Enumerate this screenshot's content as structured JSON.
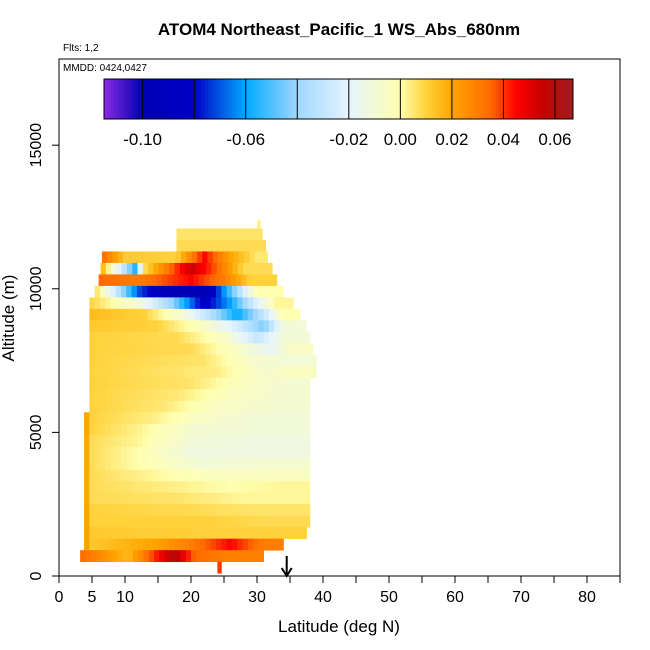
{
  "chart_data": {
    "type": "heatmap",
    "title": "ATOM4 Northeast_Pacific_1 WS_Abs_680nm",
    "flights_note": "Flts: 1,2",
    "dates_note": "MMDD: 0424,0427",
    "xlabel": "Latitude (deg N)",
    "ylabel": "Altitude (m)",
    "xlim": [
      0,
      85
    ],
    "ylim": [
      0,
      18000
    ],
    "x_ticks": [
      0,
      5,
      10,
      20,
      30,
      40,
      50,
      60,
      70,
      80
    ],
    "x_minor_ticks": [
      15,
      25,
      35,
      45,
      55,
      65,
      75,
      85
    ],
    "y_ticks": [
      0,
      5000,
      10000,
      15000
    ],
    "colorbar": {
      "range": [
        -0.115,
        0.067
      ],
      "tick_values": [
        -0.1,
        -0.06,
        -0.02,
        0.0,
        0.02,
        0.04,
        0.06
      ],
      "tick_labels": [
        "-0.10",
        "-0.06",
        "-0.02",
        "0.00",
        "0.02",
        "0.04",
        "0.06"
      ],
      "stops": [
        {
          "v": -0.115,
          "c": "#8a2be2"
        },
        {
          "v": -0.1,
          "c": "#0000b3"
        },
        {
          "v": -0.08,
          "c": "#0000c8"
        },
        {
          "v": -0.06,
          "c": "#00aaff"
        },
        {
          "v": -0.04,
          "c": "#9fd8ff"
        },
        {
          "v": -0.02,
          "c": "#e6f4ff"
        },
        {
          "v": 0.0,
          "c": "#ffffb0"
        },
        {
          "v": 0.01,
          "c": "#ffd23c"
        },
        {
          "v": 0.02,
          "c": "#ffa500"
        },
        {
          "v": 0.035,
          "c": "#ff6a00"
        },
        {
          "v": 0.045,
          "c": "#ff0000"
        },
        {
          "v": 0.055,
          "c": "#c80000"
        },
        {
          "v": 0.067,
          "c": "#a01e1e"
        }
      ]
    },
    "marker": {
      "latitude": 34.5,
      "description": "arrow"
    },
    "rows": [
      {
        "alt": 12200,
        "x0": 30,
        "x1": 30.5,
        "v": 0.003
      },
      {
        "alt": 11900,
        "x0": 17.8,
        "x1": 30.8,
        "v": 0.006
      },
      {
        "alt": 11500,
        "x0": 17.8,
        "x1": 31.3,
        "v": 0.008
      },
      {
        "alt": 11100,
        "x0": 6.5,
        "x1": 31.6,
        "segments": [
          [
            6.5,
            0.035
          ],
          [
            10,
            0.012
          ],
          [
            17.8,
            0.01
          ],
          [
            22,
            0.045
          ],
          [
            26,
            0.02
          ],
          [
            30,
            0.005
          ]
        ]
      },
      {
        "alt": 10700,
        "x0": 6.3,
        "x1": 32.3,
        "segments": [
          [
            6.3,
            0.02
          ],
          [
            11.5,
            -0.055
          ],
          [
            13,
            0.008
          ],
          [
            20,
            0.055
          ],
          [
            24,
            0.035
          ],
          [
            28,
            0.008
          ]
        ]
      },
      {
        "alt": 10300,
        "x0": 6.0,
        "x1": 33.0,
        "segments": [
          [
            6.0,
            0.035
          ],
          [
            12,
            0.03
          ],
          [
            20,
            0.045
          ],
          [
            25,
            0.03
          ],
          [
            29,
            0.01
          ]
        ]
      },
      {
        "alt": 9900,
        "x0": 5.4,
        "x1": 34.0,
        "segments": [
          [
            5.4,
            0.01
          ],
          [
            8,
            -0.02
          ],
          [
            12,
            -0.07
          ],
          [
            16,
            -0.095
          ],
          [
            22,
            -0.1
          ],
          [
            26,
            -0.05
          ],
          [
            30,
            0.0
          ]
        ]
      },
      {
        "alt": 9500,
        "x0": 4.6,
        "x1": 35.5,
        "segments": [
          [
            4.6,
            0.01
          ],
          [
            12,
            -0.01
          ],
          [
            17,
            -0.04
          ],
          [
            22,
            -0.085
          ],
          [
            26,
            -0.06
          ],
          [
            29,
            -0.03
          ],
          [
            33,
            0.002
          ]
        ]
      },
      {
        "alt": 9100,
        "x0": 4.6,
        "x1": 36.5,
        "segments": [
          [
            4.6,
            0.015
          ],
          [
            13,
            0.01
          ],
          [
            19,
            -0.01
          ],
          [
            24,
            -0.04
          ],
          [
            27,
            -0.06
          ],
          [
            31,
            -0.03
          ],
          [
            34,
            0.0
          ]
        ]
      },
      {
        "alt": 8700,
        "x0": 4.6,
        "x1": 37.5,
        "segments": [
          [
            4.6,
            0.012
          ],
          [
            15,
            0.01
          ],
          [
            22,
            -0.005
          ],
          [
            27,
            -0.025
          ],
          [
            31,
            -0.045
          ],
          [
            34,
            -0.01
          ]
        ]
      },
      {
        "alt": 8300,
        "x0": 4.6,
        "x1": 38.0,
        "segments": [
          [
            4.6,
            0.01
          ],
          [
            18,
            0.008
          ],
          [
            25,
            -0.005
          ],
          [
            30,
            -0.03
          ],
          [
            34,
            -0.01
          ]
        ]
      },
      {
        "alt": 7900,
        "x0": 4.6,
        "x1": 38.5,
        "segments": [
          [
            4.6,
            0.01
          ],
          [
            20,
            0.008
          ],
          [
            27,
            -0.005
          ],
          [
            32,
            -0.018
          ],
          [
            35,
            -0.005
          ]
        ]
      },
      {
        "alt": 7500,
        "x0": 4.6,
        "x1": 39.0,
        "segments": [
          [
            4.6,
            0.01
          ],
          [
            22,
            0.006
          ],
          [
            30,
            -0.008
          ],
          [
            35,
            -0.01
          ]
        ]
      },
      {
        "alt": 7100,
        "x0": 4.6,
        "x1": 39.0,
        "segments": [
          [
            4.6,
            0.01
          ],
          [
            24,
            0.004
          ],
          [
            31,
            -0.008
          ],
          [
            35,
            -0.004
          ]
        ]
      },
      {
        "alt": 6700,
        "x0": 4.6,
        "x1": 38.0,
        "segments": [
          [
            4.6,
            0.01
          ],
          [
            20,
            0.006
          ],
          [
            28,
            -0.004
          ],
          [
            34,
            -0.008
          ]
        ]
      },
      {
        "alt": 6300,
        "x0": 4.6,
        "x1": 38.0,
        "segments": [
          [
            4.6,
            0.01
          ],
          [
            18,
            0.005
          ],
          [
            26,
            -0.004
          ],
          [
            33,
            -0.008
          ]
        ]
      },
      {
        "alt": 5900,
        "x0": 4.6,
        "x1": 38.0,
        "segments": [
          [
            4.6,
            0.01
          ],
          [
            16,
            0.005
          ],
          [
            24,
            -0.005
          ],
          [
            32,
            -0.008
          ]
        ]
      },
      {
        "alt": 5500,
        "x0": 3.8,
        "x1": 38.0,
        "segments": [
          [
            3.8,
            0.03
          ],
          [
            4.6,
            0.01
          ],
          [
            14,
            0.004
          ],
          [
            22,
            -0.006
          ],
          [
            30,
            -0.01
          ]
        ]
      },
      {
        "alt": 5100,
        "x0": 3.8,
        "x1": 38.0,
        "segments": [
          [
            3.8,
            0.03
          ],
          [
            4.6,
            0.01
          ],
          [
            12,
            0.003
          ],
          [
            20,
            -0.008
          ],
          [
            30,
            -0.01
          ]
        ]
      },
      {
        "alt": 4700,
        "x0": 3.8,
        "x1": 38.0,
        "segments": [
          [
            3.8,
            0.03
          ],
          [
            4.6,
            0.008
          ],
          [
            12,
            0.002
          ],
          [
            20,
            -0.01
          ],
          [
            30,
            -0.012
          ]
        ]
      },
      {
        "alt": 4300,
        "x0": 3.8,
        "x1": 38.0,
        "segments": [
          [
            3.8,
            0.03
          ],
          [
            4.6,
            0.008
          ],
          [
            12,
            0.0
          ],
          [
            20,
            -0.012
          ],
          [
            30,
            -0.012
          ]
        ]
      },
      {
        "alt": 3900,
        "x0": 3.8,
        "x1": 38.0,
        "segments": [
          [
            3.8,
            0.03
          ],
          [
            4.6,
            0.008
          ],
          [
            12,
            0.0
          ],
          [
            22,
            -0.01
          ],
          [
            32,
            -0.008
          ]
        ]
      },
      {
        "alt": 3500,
        "x0": 3.8,
        "x1": 38.0,
        "segments": [
          [
            3.8,
            0.03
          ],
          [
            4.6,
            0.008
          ],
          [
            14,
            0.002
          ],
          [
            24,
            -0.004
          ],
          [
            34,
            -0.004
          ]
        ]
      },
      {
        "alt": 3100,
        "x0": 3.8,
        "x1": 38.0,
        "segments": [
          [
            3.8,
            0.03
          ],
          [
            4.6,
            0.008
          ],
          [
            16,
            0.004
          ],
          [
            26,
            0.0
          ],
          [
            34,
            0.002
          ]
        ]
      },
      {
        "alt": 2700,
        "x0": 3.8,
        "x1": 38.0,
        "segments": [
          [
            3.8,
            0.03
          ],
          [
            4.6,
            0.008
          ],
          [
            18,
            0.006
          ],
          [
            28,
            0.002
          ]
        ]
      },
      {
        "alt": 2300,
        "x0": 3.8,
        "x1": 38.0,
        "segments": [
          [
            3.8,
            0.03
          ],
          [
            4.6,
            0.01
          ],
          [
            20,
            0.008
          ],
          [
            30,
            0.006
          ]
        ]
      },
      {
        "alt": 1900,
        "x0": 3.8,
        "x1": 38.0,
        "segments": [
          [
            3.8,
            0.03
          ],
          [
            4.6,
            0.01
          ],
          [
            22,
            0.01
          ],
          [
            32,
            0.008
          ]
        ]
      },
      {
        "alt": 1500,
        "x0": 3.8,
        "x1": 37.5,
        "segments": [
          [
            3.8,
            0.03
          ],
          [
            4.6,
            0.012
          ],
          [
            24,
            0.01
          ]
        ]
      },
      {
        "alt": 1100,
        "x0": 3.8,
        "x1": 34.0,
        "segments": [
          [
            3.8,
            0.03
          ],
          [
            4.6,
            0.012
          ],
          [
            14,
            0.02
          ],
          [
            20,
            0.03
          ],
          [
            26,
            0.045
          ],
          [
            31,
            0.03
          ]
        ]
      },
      {
        "alt": 700,
        "x0": 3.2,
        "x1": 31.0,
        "segments": [
          [
            3.2,
            0.035
          ],
          [
            10.5,
            0.015
          ],
          [
            17.5,
            0.06
          ],
          [
            20.5,
            0.035
          ],
          [
            25,
            0.03
          ]
        ]
      },
      {
        "alt": 300,
        "x0": 24.0,
        "x1": 24.6,
        "v": 0.04
      }
    ]
  }
}
